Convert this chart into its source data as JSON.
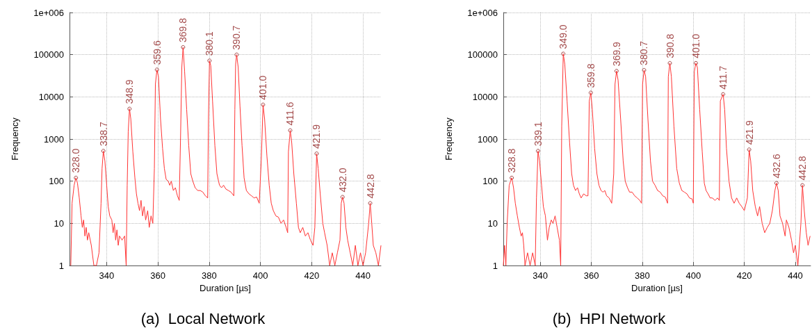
{
  "chart_data": [
    {
      "type": "line",
      "title": "(a)  Local Network",
      "xlabel": "Duration [µs]",
      "ylabel": "Frequency",
      "log": "y",
      "grid": true,
      "xlim": [
        325.5,
        447
      ],
      "xticks": [
        340,
        360,
        380,
        400,
        420,
        440
      ],
      "ylim": [
        1,
        1000000
      ],
      "yticks": [
        1,
        10,
        100,
        1000,
        10000,
        100000,
        {
          "value": 1000000,
          "label": "1e+006"
        }
      ],
      "series": [
        {
          "color": "#ff3333",
          "marker": "none",
          "x": [
            326,
            326.5,
            327.3,
            328.0,
            328.6,
            329.3,
            330,
            330.5,
            331,
            331.5,
            332,
            332.5,
            333,
            334,
            335,
            336,
            337,
            337.8,
            338.2,
            338.7,
            339.3,
            340,
            340.6,
            341.2,
            342,
            342.5,
            343,
            343.5,
            344,
            344.5,
            345,
            346,
            347,
            347.6,
            348,
            348.4,
            348.9,
            349.4,
            350.2,
            351,
            351.6,
            352.2,
            352.8,
            353.4,
            354,
            354.6,
            355.2,
            356,
            356.6,
            357.3,
            358,
            358.6,
            359.0,
            359.6,
            360.2,
            361,
            361.8,
            362.5,
            363.2,
            364,
            364.6,
            365.2,
            366,
            366.8,
            367.6,
            368.3,
            368.8,
            369.3,
            369.8,
            370.4,
            371.2,
            372,
            372.8,
            373.6,
            374.5,
            375.5,
            376.5,
            377.5,
            378.5,
            379.4,
            379.7,
            380.1,
            380.6,
            381.3,
            382.2,
            383,
            384,
            384.8,
            385.6,
            386.5,
            387.5,
            388.5,
            389.6,
            390,
            390.3,
            390.7,
            391.3,
            392,
            392.8,
            393.6,
            394.5,
            395.5,
            396.5,
            397.5,
            398.5,
            399.5,
            400.3,
            401.0,
            401.6,
            402.5,
            403.4,
            404.2,
            405,
            406,
            407,
            408,
            409,
            410,
            410.6,
            410.9,
            411.6,
            412.2,
            413,
            414,
            414.8,
            415.5,
            416.5,
            417.5,
            418.5,
            419.5,
            420.5,
            421.2,
            421.9,
            422.5,
            423.3,
            424.3,
            425,
            426,
            427,
            428,
            429,
            430,
            431,
            431.5,
            432,
            432.6,
            433.3,
            434,
            435,
            436,
            437,
            438,
            439,
            440,
            441,
            442.2,
            442.8,
            443.4,
            444,
            445,
            446,
            447
          ],
          "values": [
            1,
            30,
            80,
            120,
            90,
            40,
            15,
            8,
            12,
            5,
            8,
            4,
            6,
            3,
            1,
            1,
            2,
            30,
            200,
            520,
            300,
            80,
            25,
            15,
            12,
            6,
            10,
            4,
            7,
            3,
            5,
            4,
            5,
            1,
            80,
            1500,
            5200,
            3000,
            500,
            120,
            50,
            30,
            20,
            35,
            15,
            25,
            12,
            20,
            8,
            15,
            10,
            200,
            20000,
            44000,
            30000,
            3000,
            600,
            200,
            110,
            100,
            80,
            100,
            60,
            70,
            45,
            35,
            1000,
            50000,
            150000,
            40000,
            5000,
            700,
            150,
            100,
            70,
            60,
            60,
            55,
            45,
            40,
            3000,
            72000,
            55000,
            8000,
            700,
            150,
            80,
            70,
            80,
            65,
            60,
            55,
            45,
            5000,
            60000,
            100000,
            50000,
            6000,
            700,
            120,
            60,
            50,
            45,
            40,
            42,
            30,
            300,
            6500,
            3000,
            400,
            80,
            30,
            20,
            15,
            14,
            10,
            12,
            8,
            6,
            500,
            1600,
            800,
            150,
            30,
            8,
            6,
            8,
            5,
            6,
            4,
            3,
            8,
            450,
            200,
            50,
            10,
            6,
            3,
            1,
            2,
            1,
            2,
            4,
            30,
            42,
            30,
            8,
            4,
            2,
            1,
            3,
            1,
            2,
            1,
            2,
            10,
            30,
            10,
            3,
            2,
            1,
            3
          ]
        }
      ],
      "annotations": [
        {
          "text": "328.0",
          "x": 328.0,
          "y": 120
        },
        {
          "text": "338.7",
          "x": 338.7,
          "y": 520
        },
        {
          "text": "348.9",
          "x": 348.9,
          "y": 5200
        },
        {
          "text": "359.6",
          "x": 359.6,
          "y": 44000
        },
        {
          "text": "369.8",
          "x": 369.8,
          "y": 150000
        },
        {
          "text": "380.1",
          "x": 380.1,
          "y": 72000
        },
        {
          "text": "390.7",
          "x": 390.7,
          "y": 100000
        },
        {
          "text": "401.0",
          "x": 401.0,
          "y": 6500
        },
        {
          "text": "411.6",
          "x": 411.6,
          "y": 1600
        },
        {
          "text": "421.9",
          "x": 421.9,
          "y": 450
        },
        {
          "text": "432.0",
          "x": 432.0,
          "y": 42
        },
        {
          "text": "442.8",
          "x": 442.8,
          "y": 30
        }
      ]
    },
    {
      "type": "line",
      "title": "(b)  HPI Network",
      "xlabel": "Duration [µs]",
      "ylabel": "Frequency",
      "log": "y",
      "grid": true,
      "xlim": [
        325.5,
        446
      ],
      "xticks": [
        340,
        360,
        380,
        400,
        420,
        440
      ],
      "ylim": [
        1,
        1000000
      ],
      "yticks": [
        1,
        10,
        100,
        1000,
        10000,
        100000,
        {
          "value": 1000000,
          "label": "1e+006"
        }
      ],
      "series": [
        {
          "color": "#ff3333",
          "marker": "none",
          "x": [
            325.5,
            326,
            326.5,
            327,
            327.8,
            328.8,
            329.5,
            330.2,
            331,
            331.8,
            332.5,
            333,
            333.5,
            334,
            335,
            336,
            337,
            338,
            338.5,
            339.1,
            339.7,
            340.5,
            341.2,
            342,
            342.8,
            343.5,
            344.3,
            345,
            345.8,
            346.6,
            347.5,
            348,
            348.4,
            349.0,
            349.6,
            350.5,
            351.5,
            352.3,
            353,
            353.8,
            354.6,
            355.3,
            356,
            357,
            358,
            358.7,
            359.2,
            359.8,
            360.4,
            361.3,
            362.2,
            363,
            363.8,
            364.6,
            365.3,
            366,
            367,
            368,
            368.8,
            369.3,
            369.9,
            370.5,
            371.5,
            372.5,
            373.3,
            374.2,
            375,
            376,
            377,
            378,
            379,
            379.7,
            380.1,
            380.7,
            381.3,
            382.2,
            383.2,
            384,
            385,
            386,
            387,
            388,
            389,
            389.9,
            390.2,
            390.8,
            391.4,
            392.4,
            393.5,
            394.5,
            395.5,
            396.5,
            397.5,
            398.5,
            399.5,
            400,
            400.4,
            401.0,
            401.6,
            402.5,
            403.5,
            404.3,
            405,
            405.8,
            406.6,
            407.5,
            408.5,
            409.5,
            410.2,
            410.6,
            411.7,
            412.3,
            413,
            414,
            415,
            416,
            417,
            418,
            419,
            420,
            421.2,
            421.9,
            422.5,
            423.3,
            424.3,
            425.2,
            426,
            427,
            428,
            429,
            430,
            431,
            432,
            432.6,
            433.3,
            434,
            435,
            436,
            436.5,
            437.5,
            438.5,
            439.3,
            440,
            441,
            442.2,
            442.8,
            443.5,
            444.3,
            445,
            445.8
          ],
          "values": [
            1,
            3,
            1,
            10,
            80,
            120,
            70,
            30,
            15,
            8,
            5,
            6,
            3,
            1,
            2,
            1,
            2,
            1,
            40,
            520,
            300,
            80,
            25,
            15,
            4,
            8,
            12,
            10,
            15,
            8,
            4,
            1,
            2000,
            105000,
            60000,
            8000,
            800,
            150,
            80,
            60,
            70,
            50,
            40,
            50,
            45,
            45,
            8000,
            12500,
            5000,
            600,
            150,
            80,
            60,
            55,
            60,
            45,
            40,
            30,
            150,
            20000,
            41000,
            25000,
            3000,
            300,
            100,
            70,
            55,
            55,
            45,
            40,
            35,
            30,
            20000,
            43000,
            30000,
            3000,
            300,
            100,
            80,
            60,
            55,
            45,
            42,
            30,
            30000,
            63000,
            30000,
            2000,
            200,
            90,
            60,
            55,
            50,
            40,
            38,
            30,
            40000,
            63000,
            50000,
            5000,
            500,
            90,
            60,
            50,
            40,
            40,
            35,
            40,
            35,
            8000,
            11500,
            5000,
            600,
            100,
            40,
            30,
            40,
            30,
            25,
            20,
            40,
            560,
            300,
            60,
            25,
            15,
            25,
            10,
            6,
            8,
            10,
            20,
            60,
            90,
            60,
            15,
            10,
            5,
            12,
            8,
            4,
            2,
            3,
            1,
            10,
            80,
            20,
            6,
            3,
            5
          ]
        }
      ],
      "annotations": [
        {
          "text": "328.8",
          "x": 328.8,
          "y": 120
        },
        {
          "text": "339.1",
          "x": 339.1,
          "y": 520
        },
        {
          "text": "349.0",
          "x": 349.0,
          "y": 105000
        },
        {
          "text": "359.8",
          "x": 359.8,
          "y": 12500
        },
        {
          "text": "369.9",
          "x": 369.9,
          "y": 41000
        },
        {
          "text": "380.7",
          "x": 380.7,
          "y": 43000
        },
        {
          "text": "390.8",
          "x": 390.8,
          "y": 63000
        },
        {
          "text": "401.0",
          "x": 401.0,
          "y": 63000
        },
        {
          "text": "411.7",
          "x": 411.7,
          "y": 11500
        },
        {
          "text": "421.9",
          "x": 421.9,
          "y": 560
        },
        {
          "text": "432.6",
          "x": 432.6,
          "y": 90
        },
        {
          "text": "442.8",
          "x": 442.8,
          "y": 80
        }
      ]
    }
  ]
}
